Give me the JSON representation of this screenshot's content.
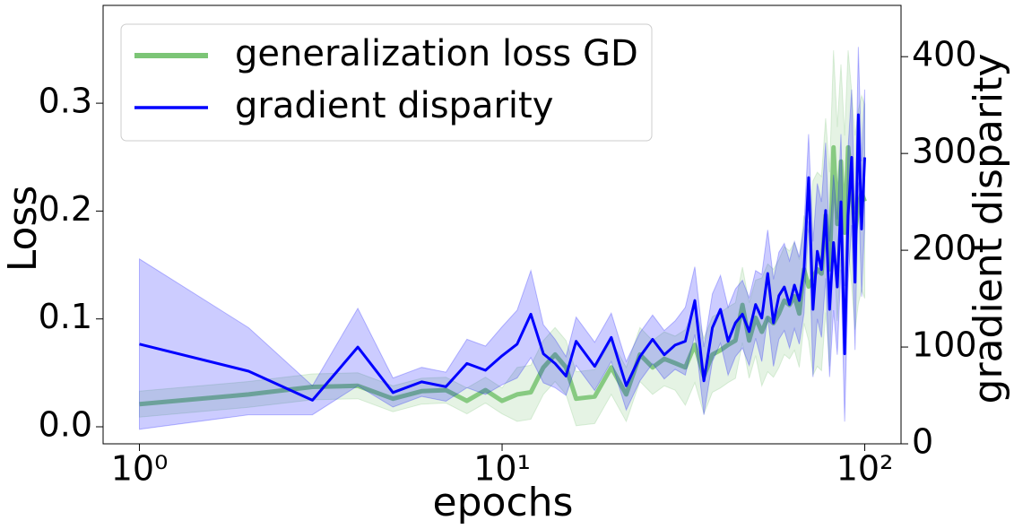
{
  "chart_data": {
    "type": "line",
    "xlabel": "epochs",
    "ylabel": "Loss",
    "y2label": "gradient disparity",
    "xscale": "log",
    "x": [
      1,
      2,
      3,
      4,
      5,
      6,
      7,
      8,
      9,
      10,
      11,
      12,
      13,
      14,
      15,
      16,
      18,
      20,
      22,
      24,
      26,
      28,
      30,
      32,
      34,
      36,
      38,
      40,
      42,
      44,
      46,
      48,
      50,
      52,
      54,
      56,
      58,
      60,
      62,
      64,
      66,
      68,
      70,
      72,
      74,
      76,
      78,
      80,
      82,
      84,
      86,
      88,
      90,
      92,
      94,
      96,
      98,
      100
    ],
    "xlim": [
      0.794,
      125.9
    ],
    "xticks": [
      {
        "value": 1,
        "label": "10⁰"
      },
      {
        "value": 10,
        "label": "10¹"
      },
      {
        "value": 100,
        "label": "10²"
      }
    ],
    "ylim": [
      -0.0158,
      0.3907
    ],
    "yticks": [
      {
        "value": 0,
        "label": "0.0"
      },
      0.1,
      0.2,
      0.3
    ],
    "y2lim": [
      0,
      453
    ],
    "y2ticks": [
      0,
      100,
      200,
      300,
      400
    ],
    "legend": "upper left",
    "series": [
      {
        "name": "generalization loss GD",
        "color": "#7cc576",
        "band_color": "#7cc576",
        "values": [
          0.021,
          0.03,
          0.037,
          0.038,
          0.026,
          0.033,
          0.034,
          0.024,
          0.034,
          0.024,
          0.03,
          0.032,
          0.055,
          0.067,
          0.055,
          0.026,
          0.028,
          0.055,
          0.03,
          0.067,
          0.055,
          0.063,
          0.059,
          0.055,
          0.076,
          0.047,
          0.067,
          0.071,
          0.076,
          0.08,
          0.113,
          0.08,
          0.101,
          0.088,
          0.101,
          0.096,
          0.105,
          0.117,
          0.113,
          0.121,
          0.105,
          0.146,
          0.13,
          0.138,
          0.146,
          0.142,
          0.196,
          0.146,
          0.259,
          0.188,
          0.246,
          0.18,
          0.259,
          0.221,
          0.18,
          0.204,
          0.217,
          0.209
        ],
        "errors": [
          0.012,
          0.012,
          0.012,
          0.012,
          0.012,
          0.012,
          0.012,
          0.012,
          0.012,
          0.012,
          0.025,
          0.025,
          0.025,
          0.025,
          0.025,
          0.025,
          0.025,
          0.025,
          0.025,
          0.025,
          0.025,
          0.025,
          0.025,
          0.035,
          0.035,
          0.035,
          0.035,
          0.035,
          0.035,
          0.035,
          0.035,
          0.035,
          0.035,
          0.05,
          0.05,
          0.05,
          0.05,
          0.05,
          0.05,
          0.05,
          0.05,
          0.05,
          0.05,
          0.09,
          0.09,
          0.09,
          0.09,
          0.09,
          0.09,
          0.09,
          0.09,
          0.09,
          0.09,
          0.09,
          0.09,
          0.09,
          0.09,
          0.09
        ]
      },
      {
        "name": "gradient disparity",
        "color": "#0000ff",
        "band_color": "#0000ff",
        "axis": "y2",
        "values": [
          103,
          75,
          45,
          100,
          53,
          64,
          59,
          83,
          76,
          91,
          103,
          134,
          93,
          83,
          70,
          106,
          80,
          110,
          60,
          90,
          108,
          92,
          102,
          106,
          148,
          65,
          120,
          139,
          106,
          125,
          134,
          116,
          144,
          130,
          176,
          125,
          153,
          162,
          144,
          164,
          148,
          180,
          275,
          139,
          199,
          180,
          241,
          139,
          208,
          162,
          250,
          93,
          236,
          296,
          167,
          340,
          222,
          296
        ],
        "errors": [
          88,
          45,
          15,
          40,
          15,
          15,
          15,
          25,
          25,
          30,
          35,
          45,
          30,
          25,
          20,
          25,
          25,
          25,
          25,
          25,
          25,
          25,
          25,
          35,
          35,
          35,
          35,
          35,
          35,
          35,
          35,
          35,
          35,
          45,
          45,
          45,
          45,
          45,
          45,
          45,
          45,
          45,
          45,
          70,
          70,
          70,
          70,
          70,
          70,
          70,
          70,
          70,
          70,
          70,
          70,
          70,
          70,
          70
        ]
      }
    ]
  }
}
